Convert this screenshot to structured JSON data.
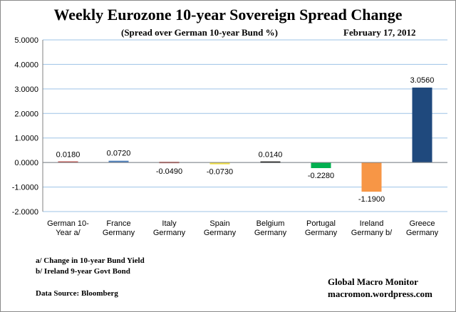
{
  "chart_data": {
    "type": "bar",
    "title": "Weekly Eurozone 10-year Sovereign Spread Change",
    "subtitle": "(Spread over German 10-year Bund  %)",
    "date": "February 17, 2012",
    "categories": [
      [
        "German 10-",
        "Year a/"
      ],
      [
        "France",
        "Germany"
      ],
      [
        "Italy",
        "Germany"
      ],
      [
        "Spain",
        "Germany"
      ],
      [
        "Belgium",
        "Germany"
      ],
      [
        "Portugal",
        "Germany"
      ],
      [
        "Ireland",
        "Germany b/"
      ],
      [
        "Greece",
        "Germany"
      ]
    ],
    "values": [
      0.018,
      0.072,
      -0.049,
      -0.073,
      0.014,
      -0.228,
      -1.19,
      3.056
    ],
    "value_labels": [
      "0.0180",
      "0.0720",
      "-0.0490",
      "-0.0730",
      "0.0140",
      "-0.2280",
      "-1.1900",
      "3.0560"
    ],
    "colors": [
      "#c0504d",
      "#4f81bd",
      "#c0504d",
      "#f0e04a",
      "#000000",
      "#00b050",
      "#f79646",
      "#1f497d"
    ],
    "ylim": [
      -2,
      5
    ],
    "yticks": [
      -2,
      -1,
      0,
      1,
      2,
      3,
      4,
      5
    ],
    "ytick_labels": [
      "-2.0000",
      "-1.0000",
      "0.0000",
      "1.0000",
      "2.0000",
      "3.0000",
      "4.0000",
      "5.0000"
    ],
    "grid": true,
    "xlabel": "",
    "ylabel": ""
  },
  "notes": {
    "note_a": "a/ Change in 10-year Bund Yield",
    "note_b": "b/ Ireland 9-year Govt Bond",
    "source": "Data Source:  Bloomberg"
  },
  "brand": {
    "name": "Global Macro Monitor",
    "site": "macromon.wordpress.com"
  }
}
